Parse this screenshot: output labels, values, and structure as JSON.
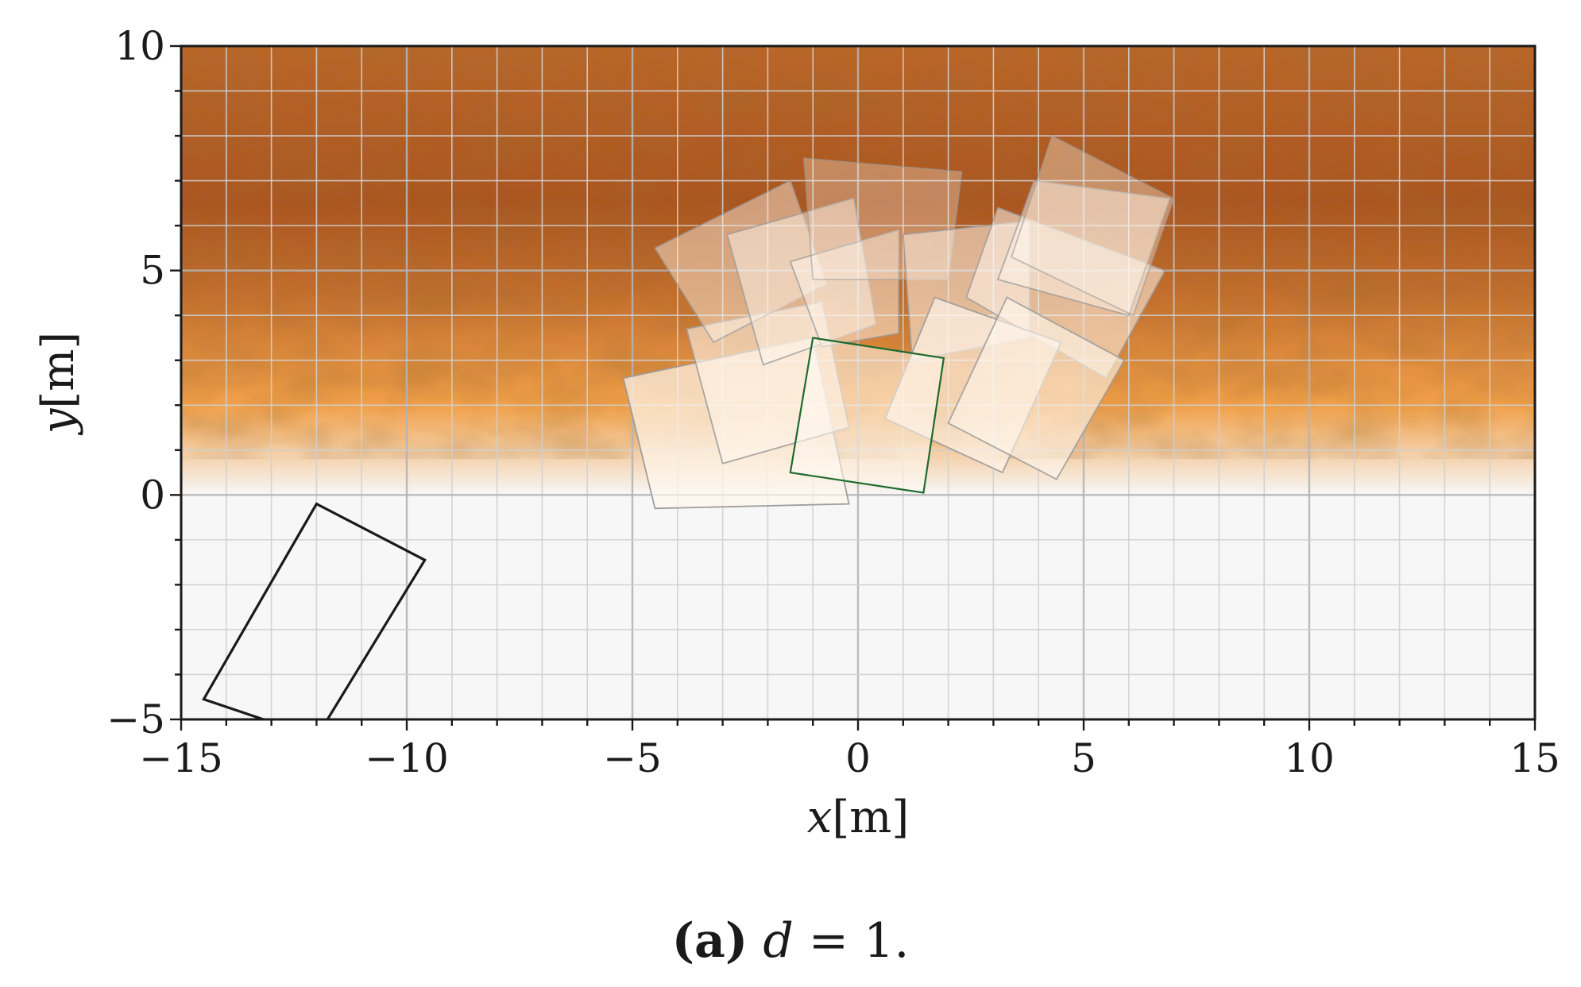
{
  "chart_data": {
    "type": "heatmap",
    "title": "",
    "xlabel": {
      "var": "x",
      "unit": "[m]"
    },
    "ylabel": {
      "var": "y",
      "unit": "[m]"
    },
    "xlim": [
      -15,
      15
    ],
    "ylim": [
      -5,
      10
    ],
    "xticks": [
      -15,
      -10,
      -5,
      0,
      5,
      10,
      15
    ],
    "yticks": [
      -5,
      0,
      5,
      10
    ],
    "xtick_labels": [
      "−15",
      "−10",
      "−5",
      "0",
      "5",
      "10",
      "15"
    ],
    "ytick_labels": [
      "−5",
      "0",
      "5",
      "10"
    ],
    "grid": true,
    "grid_step": 1,
    "field": {
      "description_levels": [
        {
          "y": -5,
          "level": 0.0
        },
        {
          "y": 0,
          "level": 0.0
        },
        {
          "y": 0.6,
          "level": 0.15
        },
        {
          "y": 2.0,
          "level": 0.5
        },
        {
          "y": 4.5,
          "level": 0.8
        },
        {
          "y": 6.5,
          "level": 0.95
        },
        {
          "y": 10,
          "level": 0.85
        }
      ],
      "colors": {
        "low": "#f7f7f7",
        "mid": "#f1a04a",
        "high": "#a34d1c"
      }
    },
    "vehicle": {
      "name": "",
      "color": "#1a1a1a",
      "polygon": [
        [
          -12.0,
          -0.2
        ],
        [
          -9.6,
          -1.45
        ],
        [
          -12.0,
          -5.4
        ],
        [
          -14.5,
          -4.55
        ]
      ]
    },
    "current_footprint": {
      "color": "#1e6b2e",
      "polygon": [
        [
          -1.0,
          3.5
        ],
        [
          1.9,
          3.05
        ],
        [
          1.45,
          0.05
        ],
        [
          -1.5,
          0.5
        ]
      ]
    },
    "footprints": [
      {
        "polygon": [
          [
            -5.2,
            2.6
          ],
          [
            -1.0,
            3.5
          ],
          [
            -0.2,
            -0.2
          ],
          [
            -4.5,
            -0.3
          ]
        ],
        "opacity": 0.7
      },
      {
        "polygon": [
          [
            -3.8,
            3.7
          ],
          [
            -0.8,
            4.3
          ],
          [
            -0.2,
            1.5
          ],
          [
            -3.0,
            0.7
          ]
        ],
        "opacity": 0.6
      },
      {
        "polygon": [
          [
            -4.5,
            5.5
          ],
          [
            -1.5,
            7.0
          ],
          [
            -0.7,
            4.7
          ],
          [
            -3.2,
            3.4
          ]
        ],
        "opacity": 0.45
      },
      {
        "polygon": [
          [
            -2.9,
            5.8
          ],
          [
            -0.1,
            6.6
          ],
          [
            0.4,
            3.8
          ],
          [
            -2.1,
            2.9
          ]
        ],
        "opacity": 0.5
      },
      {
        "polygon": [
          [
            -1.5,
            5.2
          ],
          [
            0.9,
            5.9
          ],
          [
            0.9,
            3.6
          ],
          [
            -0.8,
            3.3
          ]
        ],
        "opacity": 0.5
      },
      {
        "polygon": [
          [
            -1.2,
            7.5
          ],
          [
            2.3,
            7.2
          ],
          [
            2.0,
            4.8
          ],
          [
            -1.0,
            4.8
          ]
        ],
        "opacity": 0.3
      },
      {
        "polygon": [
          [
            1.0,
            5.8
          ],
          [
            3.8,
            6.1
          ],
          [
            3.8,
            3.5
          ],
          [
            1.2,
            3.0
          ]
        ],
        "opacity": 0.55
      },
      {
        "polygon": [
          [
            3.1,
            6.4
          ],
          [
            6.8,
            5.0
          ],
          [
            5.5,
            2.6
          ],
          [
            2.4,
            4.4
          ]
        ],
        "opacity": 0.55
      },
      {
        "polygon": [
          [
            3.9,
            7.0
          ],
          [
            6.9,
            6.6
          ],
          [
            6.0,
            4.0
          ],
          [
            3.1,
            4.8
          ]
        ],
        "opacity": 0.5
      },
      {
        "polygon": [
          [
            4.3,
            8.0
          ],
          [
            7.0,
            6.6
          ],
          [
            6.1,
            4.0
          ],
          [
            3.4,
            5.3
          ]
        ],
        "opacity": 0.35
      },
      {
        "polygon": [
          [
            1.7,
            4.4
          ],
          [
            4.5,
            3.4
          ],
          [
            3.2,
            0.5
          ],
          [
            0.6,
            1.7
          ]
        ],
        "opacity": 0.65
      },
      {
        "polygon": [
          [
            3.3,
            4.4
          ],
          [
            5.9,
            3.0
          ],
          [
            4.4,
            0.35
          ],
          [
            2.0,
            1.6
          ]
        ],
        "opacity": 0.6
      }
    ]
  },
  "caption": {
    "label": "(a)",
    "text_var": "d",
    "text_rest": " = 1."
  }
}
